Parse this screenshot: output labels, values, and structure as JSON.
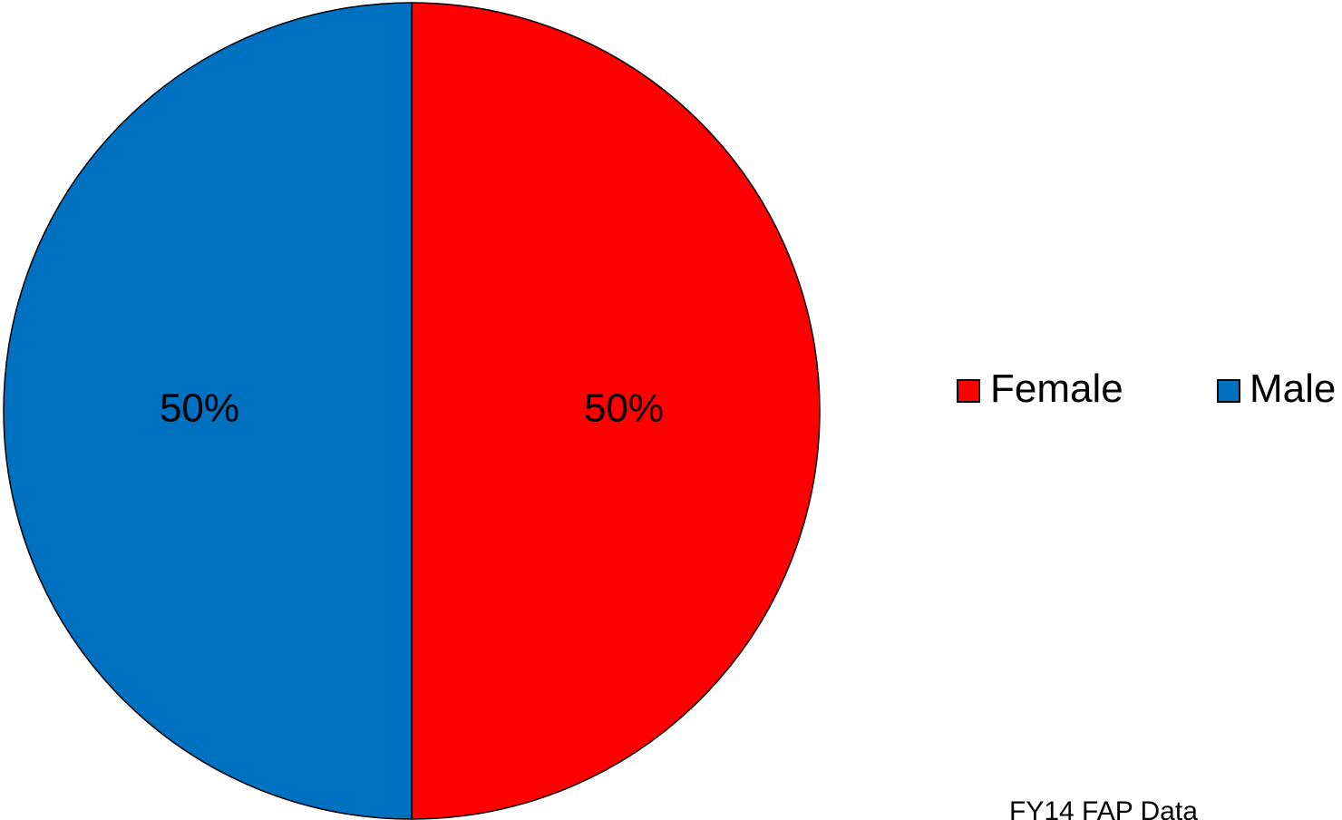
{
  "chart_data": {
    "type": "pie",
    "categories": [
      "Female",
      "Male"
    ],
    "values": [
      50,
      50
    ],
    "data_labels": [
      "50%",
      "50%"
    ],
    "colors": [
      "#ff0000",
      "#0070c0"
    ],
    "start_angle_deg": 0,
    "direction": "clockwise",
    "legend": {
      "placement": "right",
      "items": [
        {
          "label": "Female",
          "color": "#ff0000"
        },
        {
          "label": "Male",
          "color": "#0070c0"
        }
      ]
    },
    "note": "FY14 FAP Data"
  }
}
